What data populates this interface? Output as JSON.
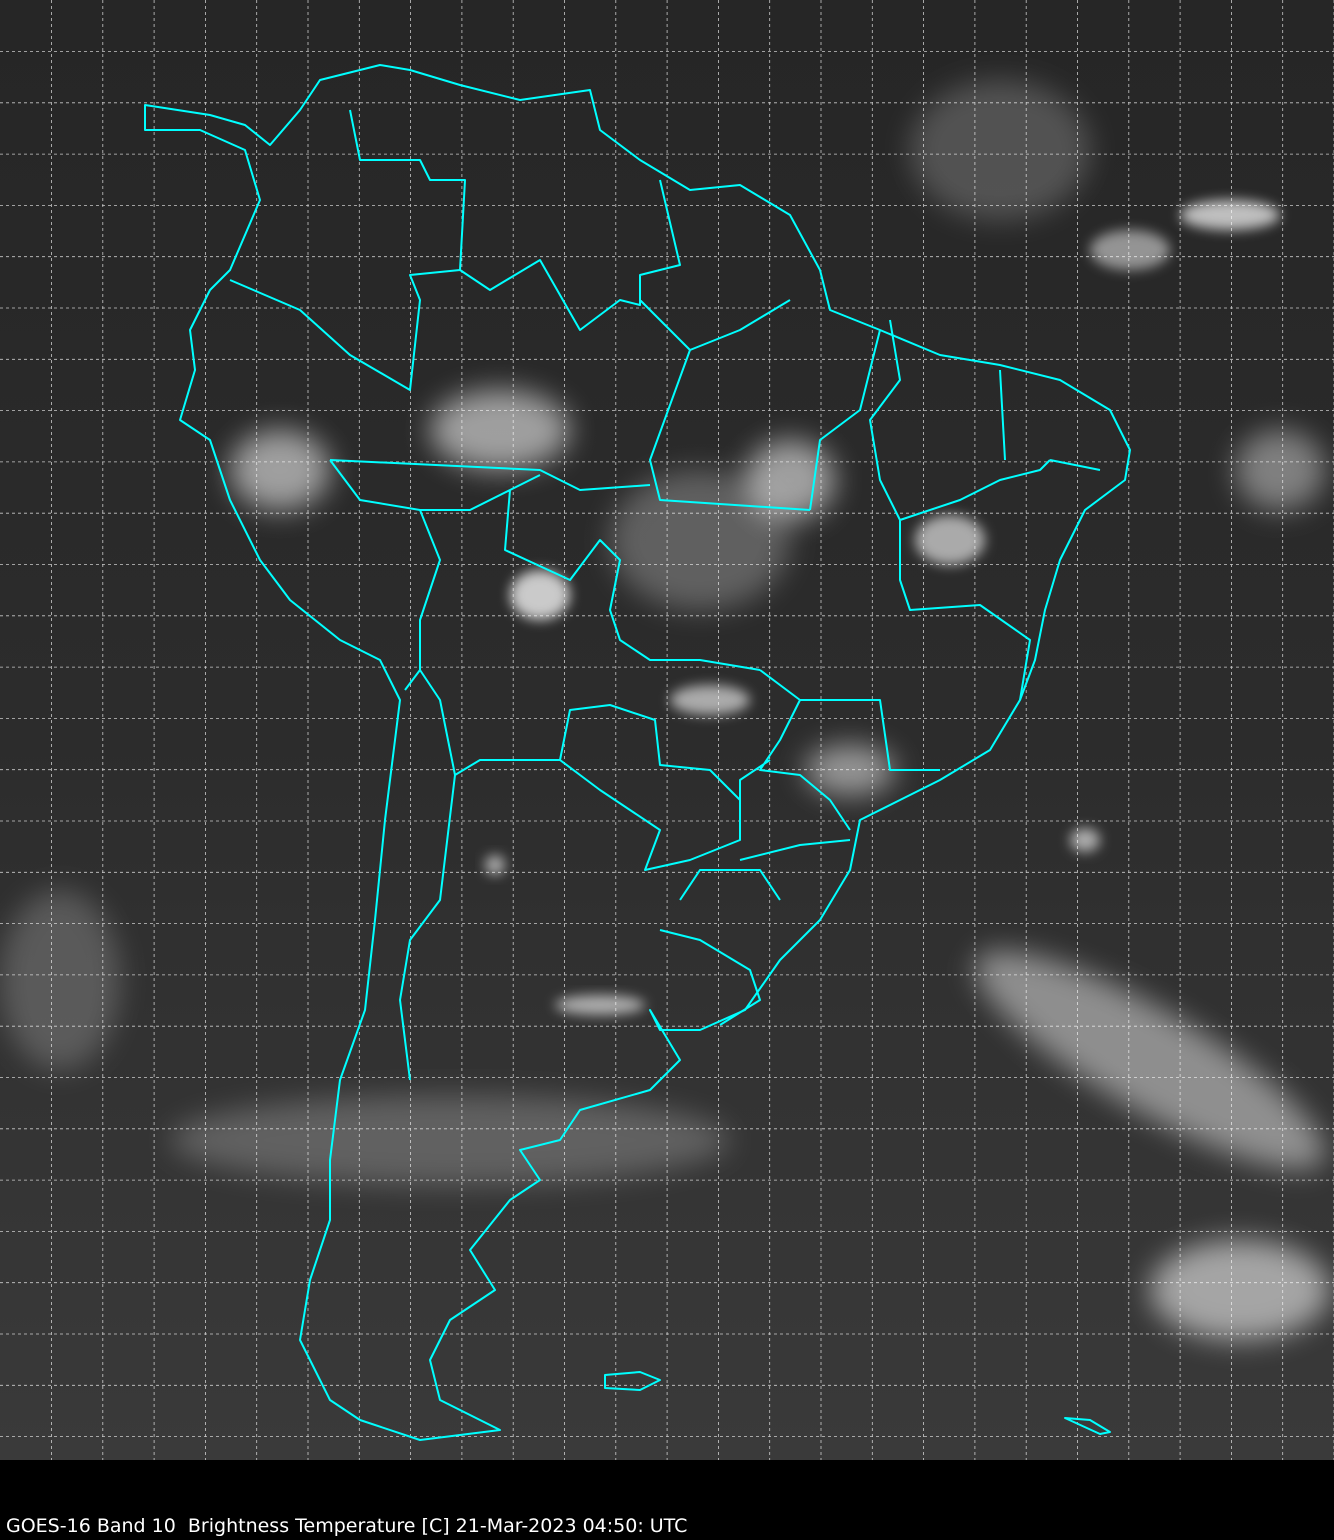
{
  "caption": "GOES-16 Band 10  Brightness Temperature [C] 21-Mar-2023 04:50: UTC",
  "map": {
    "satellite": "GOES-16",
    "band": "10",
    "product": "Brightness Temperature [C]",
    "grid": true,
    "colors": {
      "coastline": "#00ffff",
      "grid": "#ffffff",
      "background": "#2a2a2a",
      "caption_bar": "#000000"
    }
  }
}
